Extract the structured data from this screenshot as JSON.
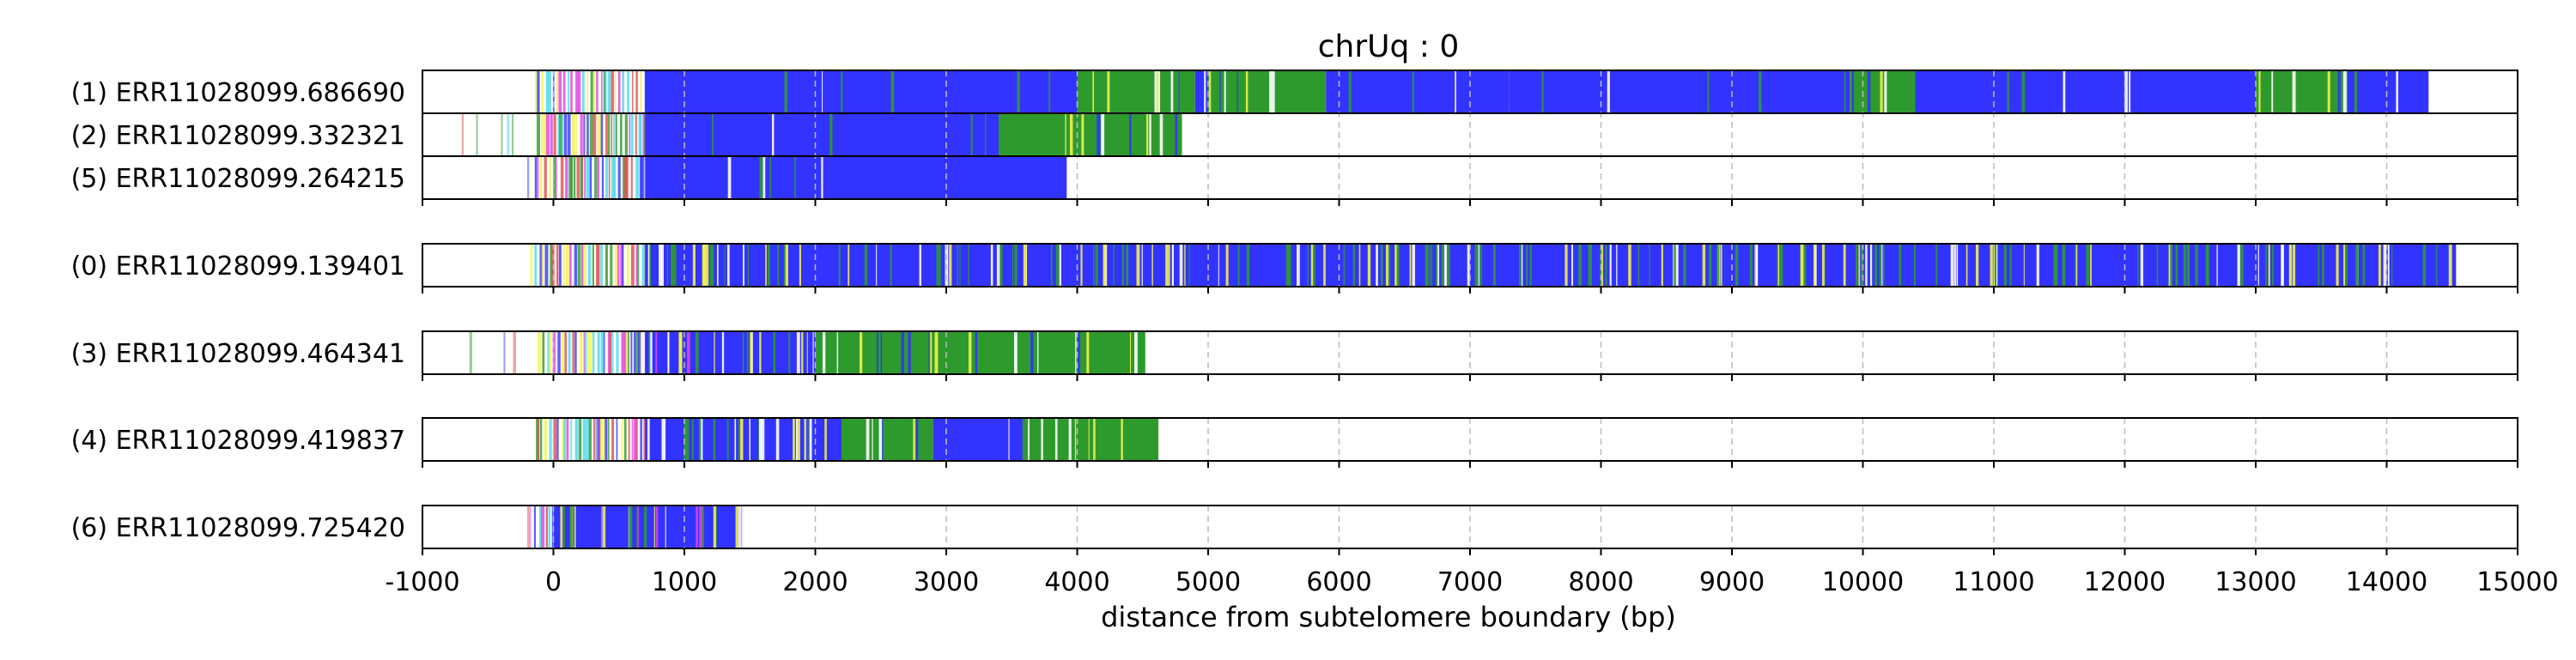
{
  "chart_data": {
    "type": "bar",
    "title": "chrUq : 0",
    "xlabel": "distance from subtelomere boundary (bp)",
    "ylabel": "",
    "xlim": [
      -1000,
      15000
    ],
    "x_ticks": [
      -1000,
      0,
      1000,
      2000,
      3000,
      4000,
      5000,
      6000,
      7000,
      8000,
      9000,
      10000,
      11000,
      12000,
      13000,
      14000,
      15000
    ],
    "grid": "vertical dashed",
    "legend": "none",
    "colors": {
      "blue": "#3333ff",
      "green": "#2e9a2e",
      "yellow": "#f2f24a",
      "magenta": "#e040e0",
      "red": "#e04a4a",
      "cyan": "#48d8e8",
      "white": "#ffffff",
      "grid": "#bbbbbb",
      "frame": "#000000"
    },
    "panels": [
      {
        "reads": [
          {
            "label": "(1) ERR11028099.686690",
            "start": -200,
            "end": 14350,
            "segments": [
              {
                "from": 700,
                "to": 4000,
                "color": "blue"
              },
              {
                "from": 4000,
                "to": 4900,
                "color": "green"
              },
              {
                "from": 4900,
                "to": 5000,
                "color": "blue"
              },
              {
                "from": 5000,
                "to": 5900,
                "color": "green"
              },
              {
                "from": 5900,
                "to": 7300,
                "color": "blue"
              },
              {
                "from": 7300,
                "to": 9900,
                "color": "blue"
              },
              {
                "from": 9900,
                "to": 10400,
                "color": "green"
              },
              {
                "from": 10400,
                "to": 13000,
                "color": "blue"
              },
              {
                "from": 13000,
                "to": 13700,
                "color": "green"
              },
              {
                "from": 13700,
                "to": 14320,
                "color": "blue"
              }
            ]
          },
          {
            "label": "(2) ERR11028099.332321",
            "start": -700,
            "end": 4800,
            "segments": [
              {
                "from": 700,
                "to": 3400,
                "color": "blue"
              },
              {
                "from": 3400,
                "to": 4800,
                "color": "green"
              }
            ]
          },
          {
            "label": "(5) ERR11028099.264215",
            "start": -200,
            "end": 3920,
            "segments": [
              {
                "from": 700,
                "to": 3920,
                "color": "blue"
              }
            ]
          }
        ]
      },
      {
        "reads": [
          {
            "label": "(0) ERR11028099.139401",
            "start": -200,
            "end": 14530,
            "segments": [
              {
                "from": 700,
                "to": 14530,
                "color": "mixed"
              }
            ]
          }
        ]
      },
      {
        "reads": [
          {
            "label": "(3) ERR11028099.464341",
            "start": -820,
            "end": 4520,
            "segments": [
              {
                "from": 700,
                "to": 1400,
                "color": "mixed-yellow"
              },
              {
                "from": 1400,
                "to": 2000,
                "color": "mixed"
              },
              {
                "from": 2000,
                "to": 4520,
                "color": "green"
              }
            ]
          }
        ]
      },
      {
        "reads": [
          {
            "label": "(4) ERR11028099.419837",
            "start": -200,
            "end": 4620,
            "segments": [
              {
                "from": 700,
                "to": 2200,
                "color": "mixed"
              },
              {
                "from": 2200,
                "to": 2900,
                "color": "green"
              },
              {
                "from": 2900,
                "to": 3600,
                "color": "blue"
              },
              {
                "from": 3600,
                "to": 4620,
                "color": "green"
              }
            ]
          }
        ]
      },
      {
        "reads": [
          {
            "label": "(6) ERR11028099.725420",
            "start": -200,
            "end": 1450,
            "segments": [
              {
                "from": 0,
                "to": 1450,
                "color": "mixed-yellow"
              }
            ]
          }
        ]
      }
    ]
  }
}
